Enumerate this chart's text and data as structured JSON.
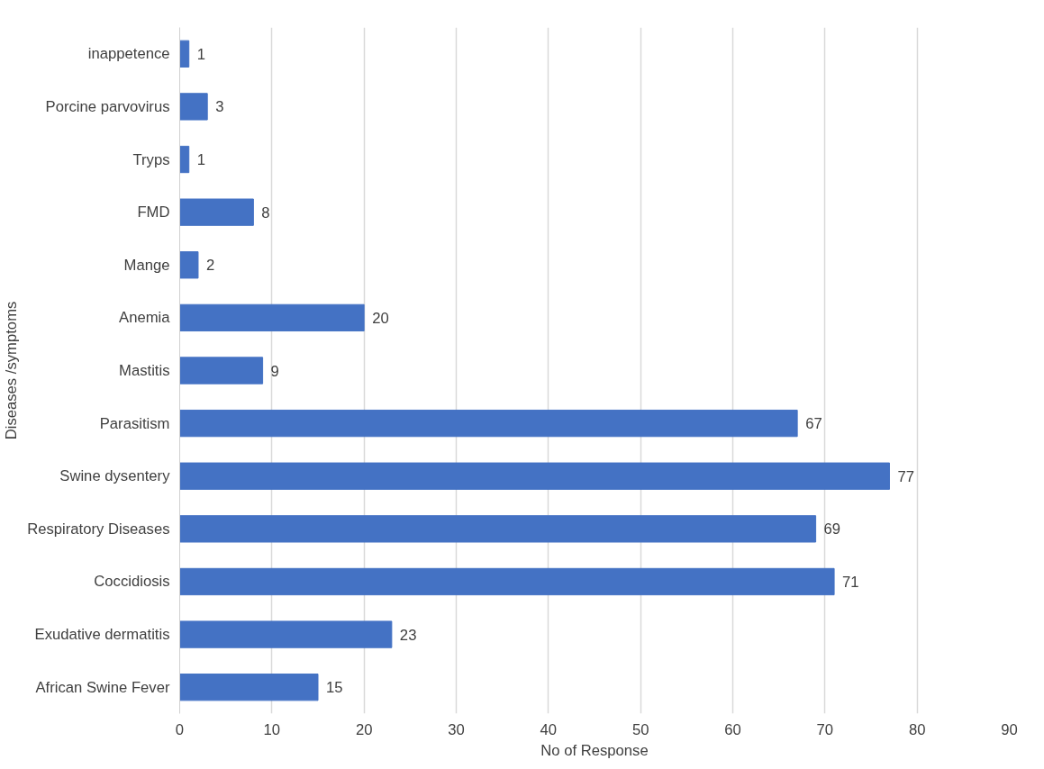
{
  "chart_data": {
    "type": "bar",
    "orientation": "horizontal",
    "xlabel": "No of Response",
    "ylabel": "Diseases /symptoms",
    "categories": [
      "inappetence",
      "Porcine parvovirus",
      "Tryps",
      "FMD",
      "Mange",
      "Anemia",
      "Mastitis",
      "Parasitism",
      "Swine dysentery",
      "Respiratory Diseases",
      "Coccidiosis",
      "Exudative dermatitis",
      "African Swine Fever"
    ],
    "values": [
      1,
      3,
      1,
      8,
      2,
      20,
      9,
      67,
      77,
      69,
      71,
      23,
      15
    ],
    "color": "#4472c4",
    "xlim": [
      0,
      90
    ],
    "xticks": [
      0,
      10,
      20,
      30,
      40,
      50,
      60,
      70,
      80,
      90
    ],
    "grid": "x",
    "data_labels": true
  }
}
